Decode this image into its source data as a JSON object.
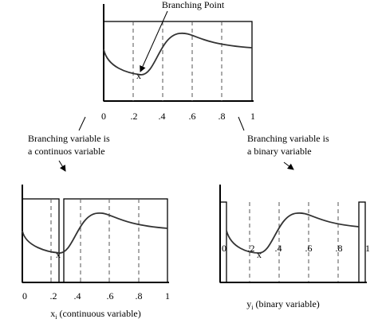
{
  "top": {
    "annotation": "Branching Point",
    "marker": "x",
    "ticks": [
      "0",
      ".2",
      ".4",
      ".6",
      ".8",
      "1"
    ]
  },
  "left_note": {
    "lines": [
      "Branching variable is",
      "a continuos variable"
    ]
  },
  "right_note": {
    "lines": [
      "Branching variable is",
      "a binary  variable"
    ]
  },
  "bottom_left": {
    "marker": "x",
    "ticks": [
      "0",
      ".2",
      ".4",
      ".6",
      ".8",
      "1"
    ],
    "axis_label": {
      "var": "x",
      "subscript": "i",
      "text": "(continuous variable)"
    }
  },
  "bottom_right": {
    "marker": "x",
    "ticks": [
      "0",
      ".2",
      ".4",
      ".6",
      ".8",
      "1"
    ],
    "axis_label": {
      "var": "y",
      "subscript": "i",
      "text": "(binary variable)"
    }
  }
}
